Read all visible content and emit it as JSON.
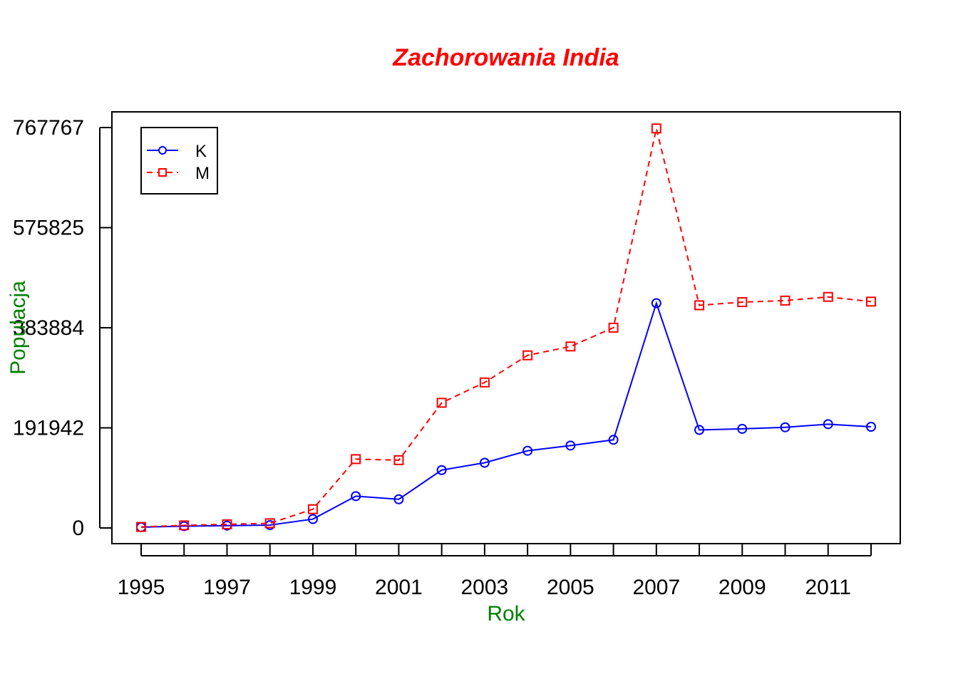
{
  "colors": {
    "title": "#ff0000",
    "axis_labels": "#008000",
    "K": "#0000ff",
    "M": "#ff0000"
  },
  "chart_data": {
    "type": "line",
    "title": "Zachorowania India",
    "xlabel": "Rok",
    "ylabel": "Populacja",
    "x": [
      1995,
      1996,
      1997,
      1998,
      1999,
      2000,
      2001,
      2002,
      2003,
      2004,
      2005,
      2006,
      2007,
      2008,
      2009,
      2010,
      2011,
      2012
    ],
    "x_tick_labels": [
      "1995",
      "1997",
      "1999",
      "2001",
      "2003",
      "2005",
      "2007",
      "2009",
      "2011"
    ],
    "y_tick_labels": [
      "0",
      "191942",
      "383884",
      "575825",
      "767767"
    ],
    "y_ticks": [
      0,
      191942,
      383884,
      575825,
      767767
    ],
    "ylim": [
      0,
      767767
    ],
    "grid": false,
    "legend_position": "top-left",
    "series": [
      {
        "name": "K",
        "color": "#0000ff",
        "line_style": "solid",
        "marker": "circle",
        "values": [
          1500,
          3500,
          4500,
          5500,
          17000,
          61000,
          55000,
          111000,
          125000,
          148000,
          158000,
          169000,
          431000,
          188000,
          190000,
          193000,
          199000,
          194000
        ]
      },
      {
        "name": "M",
        "color": "#ff0000",
        "line_style": "dashed",
        "marker": "square",
        "values": [
          2000,
          5000,
          7000,
          9000,
          36000,
          132000,
          130000,
          240000,
          279000,
          331000,
          348000,
          384000,
          766000,
          427000,
          433000,
          436000,
          443000,
          434000
        ]
      }
    ]
  }
}
